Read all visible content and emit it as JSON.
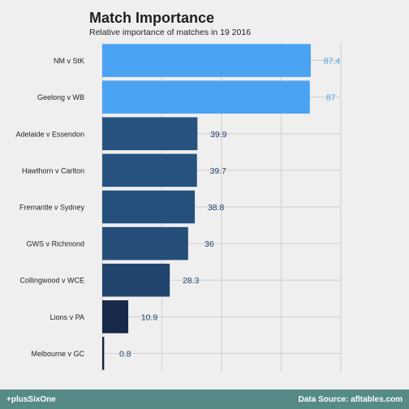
{
  "chart_data": {
    "type": "bar",
    "orientation": "horizontal",
    "title": "Match Importance",
    "subtitle": "Relative importance of matches in 19 2016",
    "categories": [
      "NM v StK",
      "Geelong v WB",
      "Adelaide v Essendon",
      "Hawthorn v Carlton",
      "Fremantle v Sydney",
      "GWS v Richmond",
      "Collingwood v WCE",
      "Lions v PA",
      "Melbourne v GC"
    ],
    "values": [
      87.4,
      87,
      39.9,
      39.7,
      38.8,
      36,
      28.3,
      10.9,
      0.8
    ],
    "value_labels": [
      "87.4",
      "87",
      "39.9",
      "39.7",
      "38.8",
      "36",
      "28.3",
      "10.9",
      "0.8"
    ],
    "xlim": [
      0,
      100
    ],
    "grid": true,
    "colors": {
      "highlight": "#4aa3f2",
      "bars": [
        "#4aa3f2",
        "#4aa3f2",
        "#26527f",
        "#26527f",
        "#26507c",
        "#254e79",
        "#21446c",
        "#18294a",
        "#132440"
      ],
      "label_highlight": "#4aa3f2",
      "label_normal": "#23436e",
      "background": "#efefef",
      "footer": "#558a86",
      "grid": "#cfcfcf"
    }
  },
  "footer": {
    "left": "+plusSixOne",
    "right": "Data Source: afltables.com"
  }
}
